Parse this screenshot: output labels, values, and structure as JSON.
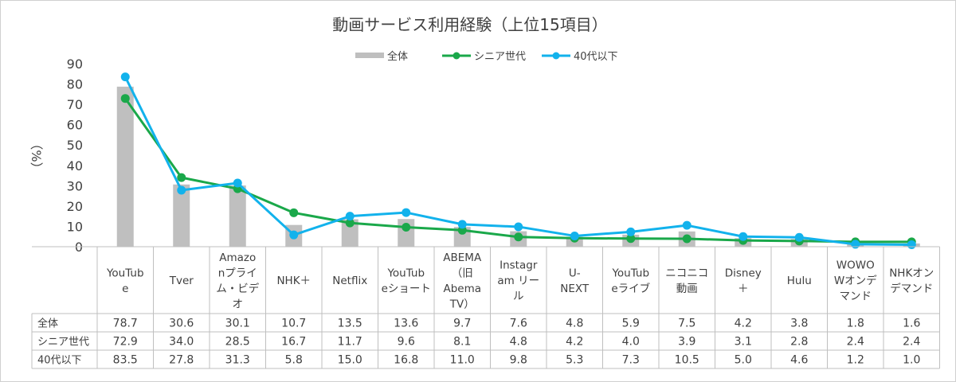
{
  "chart_data": {
    "type": "bar+line",
    "title": "動画サービス利用経験（上位15項目）",
    "ylabel": "（%）",
    "ylim": [
      0,
      90
    ],
    "yticks": [
      0,
      10,
      20,
      30,
      40,
      50,
      60,
      70,
      80,
      90
    ],
    "grid": false,
    "legend_position": "top",
    "categories": [
      [
        "YouTub",
        "e"
      ],
      [
        "Tver"
      ],
      [
        "Amazo",
        "nプライ",
        "ム・ビデ",
        "オ"
      ],
      [
        "NHK＋"
      ],
      [
        "Netflix"
      ],
      [
        "YouTub",
        "eショート"
      ],
      [
        "ABEMA",
        "（旧",
        "Abema",
        "TV）"
      ],
      [
        "Instagr",
        "am リー",
        "ル"
      ],
      [
        "U-",
        "NEXT"
      ],
      [
        "YouTub",
        "eライブ"
      ],
      [
        "ニコニコ",
        "動画"
      ],
      [
        "Disney",
        "＋"
      ],
      [
        "Hulu"
      ],
      [
        "WOWO",
        "Wオンデ",
        "マンド"
      ],
      [
        "NHKオン",
        "デマンド"
      ]
    ],
    "series": [
      {
        "name": "全体",
        "kind": "bar",
        "color": "#BFBFBF",
        "values": [
          78.7,
          30.6,
          30.1,
          10.7,
          13.5,
          13.6,
          9.7,
          7.6,
          4.8,
          5.9,
          7.5,
          4.2,
          3.8,
          1.8,
          1.6
        ],
        "labels": [
          "78.7",
          "30.6",
          "30.1",
          "10.7",
          "13.5",
          "13.6",
          "9.7",
          "7.6",
          "4.8",
          "5.9",
          "7.5",
          "4.2",
          "3.8",
          "1.8",
          "1.6"
        ]
      },
      {
        "name": "シニア世代",
        "kind": "line",
        "color": "#1AA84A",
        "values": [
          72.9,
          34.0,
          28.5,
          16.7,
          11.7,
          9.6,
          8.1,
          4.8,
          4.2,
          4.0,
          3.9,
          3.1,
          2.8,
          2.4,
          2.4
        ],
        "labels": [
          "72.9",
          "34.0",
          "28.5",
          "16.7",
          "11.7",
          "9.6",
          "8.1",
          "4.8",
          "4.2",
          "4.0",
          "3.9",
          "3.1",
          "2.8",
          "2.4",
          "2.4"
        ]
      },
      {
        "name": "40代以下",
        "kind": "line",
        "color": "#12B2EC",
        "values": [
          83.5,
          27.8,
          31.3,
          5.8,
          15.0,
          16.8,
          11.0,
          9.8,
          5.3,
          7.3,
          10.5,
          5.0,
          4.6,
          1.2,
          1.0
        ],
        "labels": [
          "83.5",
          "27.8",
          "31.3",
          "5.8",
          "15.0",
          "16.8",
          "11.0",
          "9.8",
          "5.3",
          "7.3",
          "10.5",
          "5.0",
          "4.6",
          "1.2",
          "1.0"
        ]
      }
    ]
  }
}
